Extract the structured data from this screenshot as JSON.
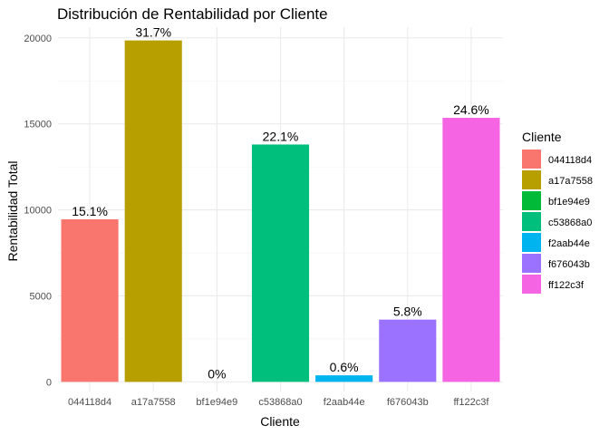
{
  "chart_data": {
    "type": "bar",
    "title": "Distribución de Rentabilidad por Cliente",
    "xlabel": "Cliente",
    "ylabel": "Rentabilidad Total",
    "categories": [
      "044118d4",
      "a17a7558",
      "bf1e94e9",
      "c53868a0",
      "f2aab44e",
      "f676043b",
      "ff122c3f"
    ],
    "values": [
      9450,
      19850,
      0,
      13800,
      380,
      3620,
      15350
    ],
    "labels": [
      "15.1%",
      "31.7%",
      "0%",
      "22.1%",
      "0.6%",
      "5.8%",
      "24.6%"
    ],
    "colors": [
      "#F8766D",
      "#B79F00",
      "#00BA38",
      "#00BF7D",
      "#00B4EF",
      "#9B72FF",
      "#F564E3"
    ],
    "ylim": [
      -560,
      20620
    ],
    "yticks": [
      0,
      5000,
      10000,
      15000,
      20000
    ],
    "ytick_labels": [
      "0",
      "5000",
      "10000",
      "15000",
      "20000"
    ],
    "grid": true,
    "legend": {
      "title": "Cliente",
      "placement": "right",
      "entries": [
        "044118d4",
        "a17a7558",
        "bf1e94e9",
        "c53868a0",
        "f2aab44e",
        "f676043b",
        "ff122c3f"
      ]
    }
  }
}
